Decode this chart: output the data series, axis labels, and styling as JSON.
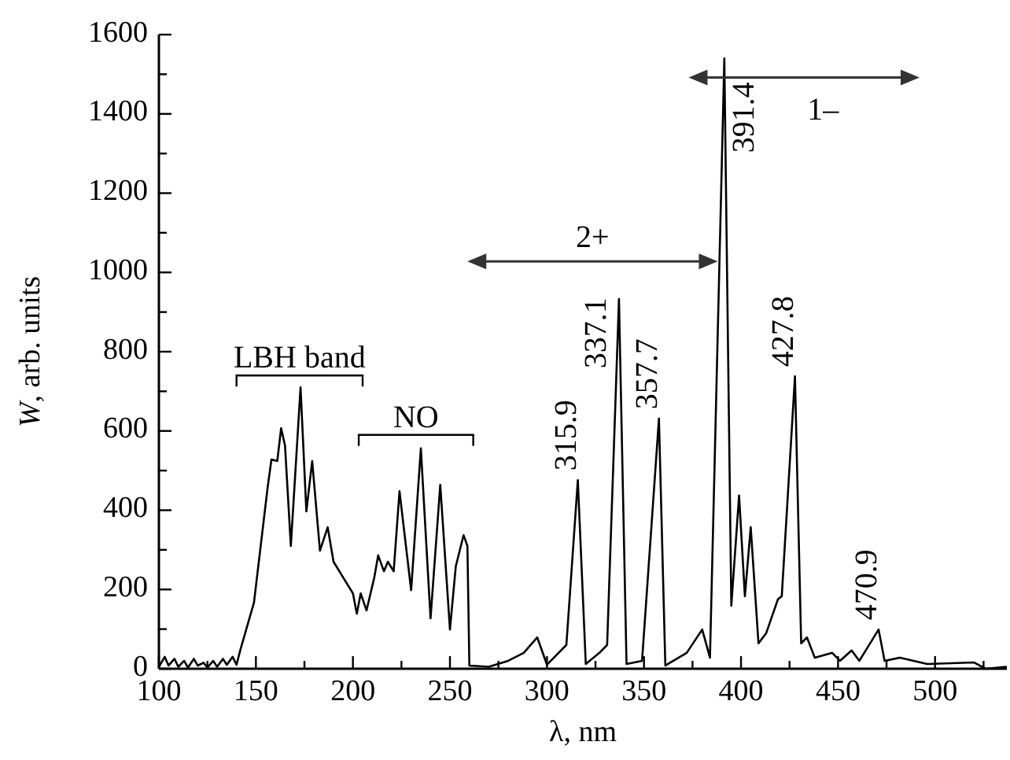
{
  "chart_data": {
    "type": "line",
    "xlabel": "λ, nm",
    "ylabel": "W, arb. units",
    "xlim": [
      100,
      537
    ],
    "ylim": [
      0,
      1600
    ],
    "xticks": [
      100,
      {
        "value": 125,
        "label": null
      },
      150,
      {
        "value": 175,
        "label": null
      },
      200,
      {
        "value": 225,
        "label": null
      },
      250,
      {
        "value": 275,
        "label": null
      },
      300,
      {
        "value": 325,
        "label": null
      },
      350,
      {
        "value": 375,
        "label": null
      },
      400,
      {
        "value": 425,
        "label": null
      },
      450,
      {
        "value": 475,
        "label": null
      },
      500,
      {
        "value": 525,
        "label": null
      }
    ],
    "yticks": [
      0,
      {
        "value": 100,
        "label": null
      },
      200,
      {
        "value": 300,
        "label": null
      },
      400,
      {
        "value": 500,
        "label": null
      },
      600,
      {
        "value": 700,
        "label": null
      },
      800,
      {
        "value": 900,
        "label": null
      },
      1000,
      {
        "value": 1100,
        "label": null
      },
      1200,
      {
        "value": 1300,
        "label": null
      },
      1400,
      {
        "value": 1500,
        "label": null
      },
      1600
    ],
    "grid": false,
    "marker": "none",
    "line_style": "solid",
    "series": [
      {
        "color": "#000000",
        "x": [
          100,
          103,
          105,
          108,
          110,
          113,
          115,
          118,
          120,
          123,
          125,
          128,
          130,
          133,
          135,
          138,
          140,
          142,
          149,
          156,
          158,
          161,
          163,
          165,
          168,
          173,
          176,
          179,
          183,
          187,
          190,
          195,
          200,
          202,
          204,
          207,
          211,
          213,
          216,
          218,
          221,
          224,
          230,
          235,
          240,
          245,
          250,
          253,
          257,
          259,
          260,
          270,
          280,
          288,
          295,
          300,
          310,
          315.9,
          320,
          327,
          331,
          337.1,
          341,
          349,
          357.7,
          361,
          372,
          380,
          384,
          391.4,
          395,
          399,
          402,
          405,
          409,
          413,
          419,
          421,
          427.8,
          431,
          434,
          438,
          447,
          451,
          457,
          461,
          470.9,
          474,
          482,
          496,
          520,
          526,
          537
        ],
        "values": [
          5,
          30,
          8,
          25,
          5,
          20,
          3,
          25,
          8,
          15,
          3,
          20,
          5,
          25,
          10,
          30,
          10,
          48,
          167,
          456,
          528,
          524,
          607,
          563,
          310,
          710,
          397,
          524,
          298,
          357,
          270,
          230,
          190,
          139,
          190,
          147,
          230,
          286,
          246,
          270,
          246,
          448,
          198,
          556,
          127,
          464,
          99,
          258,
          337,
          310,
          8,
          5,
          20,
          40,
          79,
          10,
          60,
          476,
          12,
          40,
          60,
          933,
          12,
          20,
          631,
          8,
          40,
          99,
          28,
          1540,
          159,
          437,
          183,
          357,
          64,
          90,
          175,
          183,
          738,
          64,
          79,
          28,
          40,
          20,
          46,
          20,
          99,
          20,
          28,
          12,
          16,
          0,
          5
        ]
      }
    ],
    "annotations": [
      "LBH band",
      "NO",
      "2+",
      "1–",
      {
        "text": "315.9",
        "x": 315.9,
        "y": 476
      },
      {
        "text": "337.1",
        "x": 337.1,
        "y": 933
      },
      {
        "text": "357.7",
        "x": 357.7,
        "y": 631
      },
      {
        "text": "391.4",
        "x": 391.4,
        "y": 1540
      },
      {
        "text": "427.8",
        "x": 427.8,
        "y": 738
      },
      {
        "text": "470.9",
        "x": 470.9,
        "y": 99
      }
    ]
  }
}
